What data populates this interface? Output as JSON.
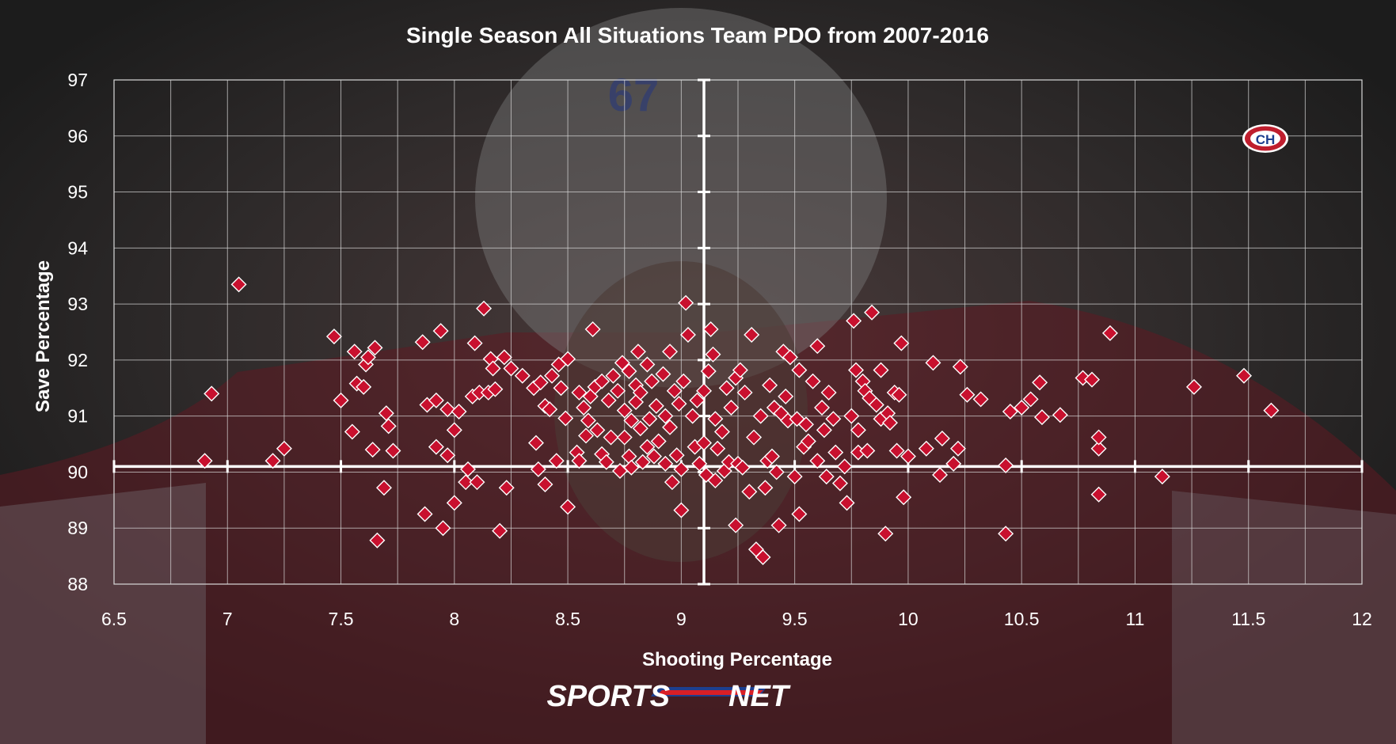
{
  "chart_data": {
    "type": "scatter",
    "title": "Single Season All Situations Team PDO from 2007-2016",
    "xlabel": "Shooting Percentage",
    "ylabel": "Save Percentage",
    "xlim": [
      6.5,
      12
    ],
    "ylim": [
      88,
      97
    ],
    "xticks": [
      "6.5",
      "7",
      "7.5",
      "8",
      "8.5",
      "9",
      "9.5",
      "10",
      "10.5",
      "11",
      "11.5",
      "12"
    ],
    "yticks": [
      "88",
      "89",
      "90",
      "91",
      "92",
      "93",
      "94",
      "95",
      "96",
      "97"
    ],
    "x_major_step": 0.5,
    "x_minor_step": 0.25,
    "grid": true,
    "reference_lines": {
      "x": 9.1,
      "y": 90.1
    },
    "marker": "diamond",
    "marker_color": "#c8102e",
    "points": [
      [
        6.9,
        90.2
      ],
      [
        6.93,
        91.4
      ],
      [
        7.05,
        93.35
      ],
      [
        7.2,
        90.2
      ],
      [
        7.25,
        90.42
      ],
      [
        7.47,
        92.42
      ],
      [
        7.5,
        91.28
      ],
      [
        7.55,
        90.72
      ],
      [
        7.56,
        92.15
      ],
      [
        7.57,
        91.58
      ],
      [
        7.6,
        91.52
      ],
      [
        7.61,
        91.92
      ],
      [
        7.62,
        92.05
      ],
      [
        7.64,
        90.4
      ],
      [
        7.65,
        92.22
      ],
      [
        7.66,
        88.78
      ],
      [
        7.69,
        89.72
      ],
      [
        7.7,
        91.05
      ],
      [
        7.71,
        90.82
      ],
      [
        7.73,
        90.38
      ],
      [
        7.86,
        92.32
      ],
      [
        7.87,
        89.25
      ],
      [
        7.88,
        91.2
      ],
      [
        7.92,
        91.28
      ],
      [
        7.92,
        90.45
      ],
      [
        7.94,
        92.52
      ],
      [
        7.95,
        89.0
      ],
      [
        7.97,
        91.12
      ],
      [
        7.97,
        90.3
      ],
      [
        8.0,
        89.45
      ],
      [
        8.0,
        90.75
      ],
      [
        8.02,
        91.08
      ],
      [
        8.05,
        89.82
      ],
      [
        8.06,
        90.05
      ],
      [
        8.08,
        91.35
      ],
      [
        8.09,
        92.3
      ],
      [
        8.1,
        89.82
      ],
      [
        8.11,
        91.42
      ],
      [
        8.13,
        92.92
      ],
      [
        8.15,
        91.42
      ],
      [
        8.16,
        92.02
      ],
      [
        8.17,
        91.85
      ],
      [
        8.18,
        91.48
      ],
      [
        8.2,
        88.95
      ],
      [
        8.22,
        92.05
      ],
      [
        8.23,
        89.72
      ],
      [
        8.25,
        91.85
      ],
      [
        8.3,
        91.72
      ],
      [
        8.35,
        91.5
      ],
      [
        8.36,
        90.52
      ],
      [
        8.37,
        90.05
      ],
      [
        8.38,
        91.6
      ],
      [
        8.4,
        91.18
      ],
      [
        8.4,
        89.78
      ],
      [
        8.42,
        91.12
      ],
      [
        8.43,
        91.72
      ],
      [
        8.45,
        90.2
      ],
      [
        8.46,
        91.92
      ],
      [
        8.47,
        91.5
      ],
      [
        8.49,
        90.96
      ],
      [
        8.5,
        92.02
      ],
      [
        8.5,
        89.38
      ],
      [
        8.54,
        90.35
      ],
      [
        8.55,
        91.42
      ],
      [
        8.55,
        90.2
      ],
      [
        8.57,
        91.15
      ],
      [
        8.58,
        90.65
      ],
      [
        8.59,
        90.92
      ],
      [
        8.6,
        91.35
      ],
      [
        8.61,
        92.55
      ],
      [
        8.62,
        91.52
      ],
      [
        8.63,
        90.75
      ],
      [
        8.65,
        91.62
      ],
      [
        8.65,
        90.32
      ],
      [
        8.67,
        90.18
      ],
      [
        8.68,
        91.28
      ],
      [
        8.69,
        90.62
      ],
      [
        8.7,
        91.72
      ],
      [
        8.72,
        91.45
      ],
      [
        8.73,
        90.02
      ],
      [
        8.74,
        91.95
      ],
      [
        8.75,
        91.1
      ],
      [
        8.75,
        90.62
      ],
      [
        8.77,
        91.8
      ],
      [
        8.77,
        90.28
      ],
      [
        8.78,
        90.92
      ],
      [
        8.78,
        90.08
      ],
      [
        8.8,
        91.25
      ],
      [
        8.8,
        91.55
      ],
      [
        8.81,
        92.15
      ],
      [
        8.82,
        91.42
      ],
      [
        8.82,
        90.78
      ],
      [
        8.83,
        90.18
      ],
      [
        8.85,
        90.45
      ],
      [
        8.85,
        91.92
      ],
      [
        8.86,
        90.95
      ],
      [
        8.87,
        91.62
      ],
      [
        8.88,
        90.28
      ],
      [
        8.89,
        91.18
      ],
      [
        8.9,
        90.55
      ],
      [
        8.92,
        91.75
      ],
      [
        8.93,
        90.15
      ],
      [
        8.93,
        91.0
      ],
      [
        8.95,
        92.15
      ],
      [
        8.95,
        90.8
      ],
      [
        8.96,
        89.82
      ],
      [
        8.97,
        91.45
      ],
      [
        8.98,
        90.3
      ],
      [
        8.99,
        91.22
      ],
      [
        9.0,
        90.05
      ],
      [
        9.0,
        89.32
      ],
      [
        9.01,
        91.62
      ],
      [
        9.02,
        93.02
      ],
      [
        9.03,
        92.45
      ],
      [
        9.05,
        91.0
      ],
      [
        9.06,
        90.45
      ],
      [
        9.07,
        91.28
      ],
      [
        9.08,
        90.15
      ],
      [
        9.1,
        91.45
      ],
      [
        9.1,
        90.52
      ],
      [
        9.11,
        89.95
      ],
      [
        9.12,
        91.8
      ],
      [
        9.13,
        92.55
      ],
      [
        9.14,
        92.1
      ],
      [
        9.15,
        90.95
      ],
      [
        9.15,
        89.85
      ],
      [
        9.16,
        90.42
      ],
      [
        9.18,
        90.72
      ],
      [
        9.19,
        90.02
      ],
      [
        9.2,
        91.5
      ],
      [
        9.21,
        90.18
      ],
      [
        9.22,
        91.15
      ],
      [
        9.24,
        89.05
      ],
      [
        9.24,
        91.68
      ],
      [
        9.25,
        90.15
      ],
      [
        9.26,
        91.82
      ],
      [
        9.27,
        90.08
      ],
      [
        9.28,
        91.42
      ],
      [
        9.3,
        89.65
      ],
      [
        9.31,
        92.45
      ],
      [
        9.32,
        90.62
      ],
      [
        9.33,
        88.62
      ],
      [
        9.35,
        91.0
      ],
      [
        9.36,
        88.48
      ],
      [
        9.37,
        89.72
      ],
      [
        9.38,
        90.2
      ],
      [
        9.39,
        91.55
      ],
      [
        9.4,
        90.28
      ],
      [
        9.41,
        91.15
      ],
      [
        9.42,
        90.0
      ],
      [
        9.43,
        89.05
      ],
      [
        9.44,
        91.05
      ],
      [
        9.45,
        92.15
      ],
      [
        9.46,
        91.35
      ],
      [
        9.47,
        90.92
      ],
      [
        9.48,
        92.05
      ],
      [
        9.5,
        89.92
      ],
      [
        9.51,
        90.95
      ],
      [
        9.52,
        91.82
      ],
      [
        9.52,
        89.25
      ],
      [
        9.54,
        90.45
      ],
      [
        9.55,
        90.85
      ],
      [
        9.56,
        90.55
      ],
      [
        9.58,
        91.62
      ],
      [
        9.6,
        90.2
      ],
      [
        9.6,
        92.25
      ],
      [
        9.62,
        91.15
      ],
      [
        9.63,
        90.75
      ],
      [
        9.64,
        89.92
      ],
      [
        9.65,
        91.42
      ],
      [
        9.67,
        90.95
      ],
      [
        9.68,
        90.35
      ],
      [
        9.7,
        89.8
      ],
      [
        9.72,
        90.1
      ],
      [
        9.73,
        89.45
      ],
      [
        9.75,
        91.0
      ],
      [
        9.76,
        92.7
      ],
      [
        9.77,
        91.82
      ],
      [
        9.78,
        90.35
      ],
      [
        9.78,
        90.75
      ],
      [
        9.8,
        91.62
      ],
      [
        9.81,
        91.45
      ],
      [
        9.82,
        90.38
      ],
      [
        9.83,
        91.32
      ],
      [
        9.84,
        92.85
      ],
      [
        9.86,
        91.2
      ],
      [
        9.88,
        91.82
      ],
      [
        9.88,
        90.95
      ],
      [
        9.9,
        88.9
      ],
      [
        9.91,
        91.05
      ],
      [
        9.92,
        90.88
      ],
      [
        9.94,
        91.42
      ],
      [
        9.95,
        90.38
      ],
      [
        9.96,
        91.38
      ],
      [
        9.97,
        92.3
      ],
      [
        9.98,
        89.55
      ],
      [
        10.0,
        90.28
      ],
      [
        10.08,
        90.42
      ],
      [
        10.11,
        91.95
      ],
      [
        10.14,
        89.95
      ],
      [
        10.15,
        90.6
      ],
      [
        10.2,
        90.15
      ],
      [
        10.22,
        90.42
      ],
      [
        10.23,
        91.88
      ],
      [
        10.26,
        91.38
      ],
      [
        10.32,
        91.3
      ],
      [
        10.43,
        90.12
      ],
      [
        10.43,
        88.9
      ],
      [
        10.45,
        91.08
      ],
      [
        10.5,
        91.15
      ],
      [
        10.54,
        91.3
      ],
      [
        10.58,
        91.6
      ],
      [
        10.59,
        90.98
      ],
      [
        10.67,
        91.02
      ],
      [
        10.77,
        91.68
      ],
      [
        10.81,
        91.65
      ],
      [
        10.84,
        90.42
      ],
      [
        10.84,
        90.62
      ],
      [
        10.84,
        89.6
      ],
      [
        10.89,
        92.48
      ],
      [
        11.12,
        89.92
      ],
      [
        11.26,
        91.52
      ],
      [
        11.48,
        91.72
      ],
      [
        11.6,
        91.1
      ]
    ]
  },
  "header": {
    "team_logo_icon": "canadiens-logo-icon",
    "team_logo_text": "CH",
    "player_number": "67"
  },
  "footer": {
    "brand_sports": "SPORTS",
    "brand_net": "NET",
    "brand_icon": "sportsnet-logo-icon"
  },
  "colors": {
    "background": "#262626",
    "grid": "#d9d9d9",
    "marker": "#c8102e",
    "marker_stroke": "#ffffff",
    "text": "#ffffff",
    "brand_red": "#d91f26",
    "brand_blue": "#1d3f8f"
  }
}
